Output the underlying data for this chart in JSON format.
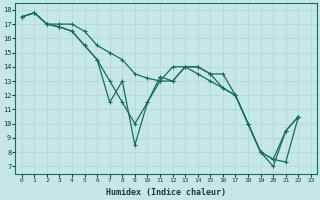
{
  "xlabel": "Humidex (Indice chaleur)",
  "bg_color": "#c5e8e5",
  "grid_color": "#b0d4d0",
  "line_color": "#1a6b5a",
  "xlim": [
    -0.5,
    23.5
  ],
  "ylim": [
    6.5,
    18.5
  ],
  "yticks": [
    7,
    8,
    9,
    10,
    11,
    12,
    13,
    14,
    15,
    16,
    17,
    18
  ],
  "xticks": [
    0,
    1,
    2,
    3,
    4,
    5,
    6,
    7,
    8,
    9,
    10,
    11,
    12,
    13,
    14,
    15,
    16,
    17,
    18,
    19,
    20,
    21,
    22,
    23
  ],
  "line1_x": [
    0,
    1,
    2,
    3,
    4,
    5,
    6,
    7,
    8,
    9,
    10,
    11,
    12,
    13,
    14,
    15,
    16,
    17,
    18,
    19,
    20,
    21,
    22
  ],
  "line1_y": [
    17.5,
    17.8,
    17.0,
    17.0,
    17.0,
    16.5,
    15.5,
    15.0,
    14.5,
    13.5,
    13.2,
    13.0,
    13.0,
    14.0,
    14.0,
    13.5,
    13.5,
    12.0,
    10.0,
    8.0,
    7.5,
    7.3,
    10.5
  ],
  "line2_x": [
    0,
    1,
    2,
    3,
    4,
    5,
    6,
    7,
    8,
    9,
    10,
    11,
    12,
    13,
    14,
    15,
    16,
    17,
    18,
    19,
    20,
    21,
    22
  ],
  "line2_y": [
    17.5,
    17.8,
    17.0,
    16.8,
    16.5,
    15.5,
    14.5,
    13.0,
    11.5,
    10.0,
    11.5,
    13.3,
    13.0,
    14.0,
    14.0,
    13.5,
    12.5,
    12.0,
    10.0,
    8.0,
    7.5,
    9.5,
    10.5
  ],
  "line3_x": [
    0,
    1,
    2,
    3,
    4,
    5,
    6,
    7,
    8,
    9,
    10,
    11,
    12,
    13,
    14,
    15,
    16,
    17,
    18,
    19,
    20,
    21,
    22
  ],
  "line3_y": [
    17.5,
    17.8,
    17.0,
    16.8,
    16.5,
    15.5,
    14.5,
    11.5,
    13.0,
    8.5,
    11.5,
    13.0,
    14.0,
    14.0,
    13.5,
    13.0,
    12.5,
    12.0,
    10.0,
    8.0,
    7.0,
    9.5,
    10.5
  ]
}
